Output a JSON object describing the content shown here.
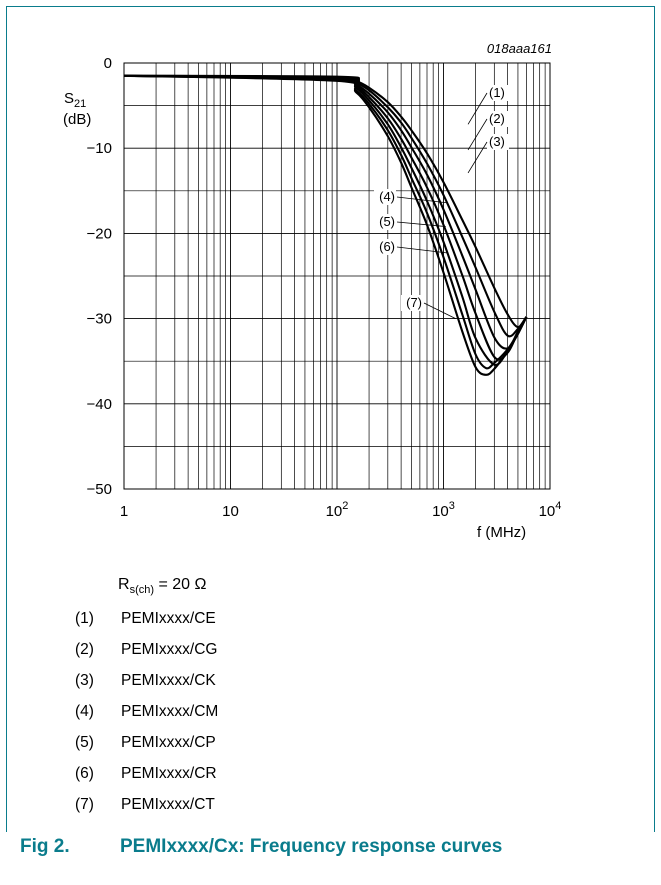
{
  "figure_code": "018aaa161",
  "ylabel_main": "S",
  "ylabel_sub": "21",
  "ylabel_unit": "(dB)",
  "xlabel": "f (MHz)",
  "condition": {
    "main": "R",
    "sub": "s(ch)",
    "rest": " = 20 Ω"
  },
  "legend": [
    {
      "num": "(1)",
      "label": "PEMIxxxx/CE"
    },
    {
      "num": "(2)",
      "label": "PEMIxxxx/CG"
    },
    {
      "num": "(3)",
      "label": "PEMIxxxx/CK"
    },
    {
      "num": "(4)",
      "label": "PEMIxxxx/CM"
    },
    {
      "num": "(5)",
      "label": "PEMIxxxx/CP"
    },
    {
      "num": "(6)",
      "label": "PEMIxxxx/CR"
    },
    {
      "num": "(7)",
      "label": "PEMIxxxx/CT"
    }
  ],
  "caption": {
    "fig": "Fig 2.",
    "title": "PEMIxxxx/Cx: Frequency response curves"
  },
  "colors": {
    "accent": "#0a7c8c",
    "line": "#000000"
  },
  "chart_data": {
    "type": "line",
    "xscale": "log",
    "xlim": [
      1,
      10000
    ],
    "ylim": [
      -50,
      0
    ],
    "xticks": [
      1,
      10,
      100,
      1000,
      10000
    ],
    "xtick_labels": [
      {
        "base": "1",
        "exp": ""
      },
      {
        "base": "10",
        "exp": ""
      },
      {
        "base": "10",
        "exp": "2"
      },
      {
        "base": "10",
        "exp": "3"
      },
      {
        "base": "10",
        "exp": "4"
      }
    ],
    "yticks": [
      0,
      -10,
      -20,
      -30,
      -40,
      -50
    ],
    "ytick_labels": [
      "0",
      "−10",
      "−20",
      "−30",
      "−40",
      "−50"
    ],
    "grid": true,
    "series": [
      {
        "name": "(1)",
        "x": [
          1,
          100,
          150,
          200,
          300,
          400,
          500,
          700,
          1000,
          1500,
          2000,
          3000,
          4000,
          5000,
          6000
        ],
        "y": [
          -1.5,
          -1.6,
          -2.1,
          -2.9,
          -4.6,
          -6.3,
          -7.9,
          -10.6,
          -14.0,
          -18.4,
          -21.6,
          -26.4,
          -29.5,
          -31.0,
          -29.8
        ]
      },
      {
        "name": "(2)",
        "x": [
          1,
          100,
          150,
          200,
          300,
          400,
          500,
          700,
          1000,
          1500,
          2000,
          3000,
          4000,
          5000,
          6000
        ],
        "y": [
          -1.5,
          -1.7,
          -2.3,
          -3.2,
          -5.2,
          -7.0,
          -8.8,
          -11.8,
          -15.5,
          -20.4,
          -24.0,
          -29.2,
          -32.0,
          -31.2,
          -29.8
        ]
      },
      {
        "name": "(3)",
        "x": [
          1,
          100,
          150,
          200,
          300,
          400,
          500,
          700,
          1000,
          1500,
          2000,
          3000,
          4000,
          5000,
          6000
        ],
        "y": [
          -1.5,
          -1.7,
          -2.5,
          -3.6,
          -5.8,
          -7.9,
          -9.9,
          -13.1,
          -17.2,
          -22.6,
          -26.6,
          -32.2,
          -33.5,
          -31.5,
          -29.8
        ]
      },
      {
        "name": "(4)",
        "x": [
          1,
          100,
          150,
          200,
          300,
          400,
          500,
          700,
          1000,
          1500,
          2000,
          3000,
          4000,
          5000,
          6000
        ],
        "y": [
          -1.5,
          -1.8,
          -2.7,
          -4.0,
          -6.5,
          -8.9,
          -11.1,
          -14.6,
          -19.0,
          -24.9,
          -29.4,
          -34.5,
          -34.0,
          -31.6,
          -29.8
        ]
      },
      {
        "name": "(5)",
        "x": [
          1,
          100,
          150,
          200,
          300,
          400,
          500,
          700,
          1000,
          1500,
          2000,
          3000,
          4000,
          5000,
          6000
        ],
        "y": [
          -1.5,
          -1.9,
          -2.9,
          -4.4,
          -7.2,
          -9.9,
          -12.3,
          -16.2,
          -21.0,
          -27.4,
          -32.3,
          -35.4,
          -33.8,
          -31.7,
          -29.8
        ]
      },
      {
        "name": "(6)",
        "x": [
          1,
          100,
          150,
          200,
          300,
          400,
          500,
          700,
          1000,
          1500,
          2000,
          2500,
          3000,
          4000,
          5000,
          6000
        ],
        "y": [
          -1.5,
          -2.0,
          -3.2,
          -4.8,
          -7.9,
          -10.8,
          -13.5,
          -17.6,
          -22.8,
          -29.5,
          -34.2,
          -35.8,
          -35.2,
          -33.6,
          -31.7,
          -29.8
        ]
      },
      {
        "name": "(7)",
        "x": [
          1,
          100,
          150,
          200,
          300,
          400,
          500,
          700,
          1000,
          1500,
          2000,
          2500,
          3000,
          4000,
          5000,
          6000
        ],
        "y": [
          -1.5,
          -2.1,
          -3.4,
          -5.2,
          -8.6,
          -11.7,
          -14.6,
          -19.0,
          -24.6,
          -31.5,
          -35.7,
          -36.6,
          -35.9,
          -33.8,
          -31.8,
          -29.8
        ]
      }
    ],
    "annotations": [
      {
        "label": "(1)",
        "x": 1700,
        "y": -7.2
      },
      {
        "label": "(2)",
        "x": 1700,
        "y": -10.2
      },
      {
        "label": "(3)",
        "x": 1700,
        "y": -12.9
      },
      {
        "label": "(4)",
        "x": 1070,
        "y": -16.4
      },
      {
        "label": "(5)",
        "x": 1050,
        "y": -19.2
      },
      {
        "label": "(6)",
        "x": 1100,
        "y": -22.3
      },
      {
        "label": "(7)",
        "x": 1300,
        "y": -30.0
      }
    ]
  }
}
